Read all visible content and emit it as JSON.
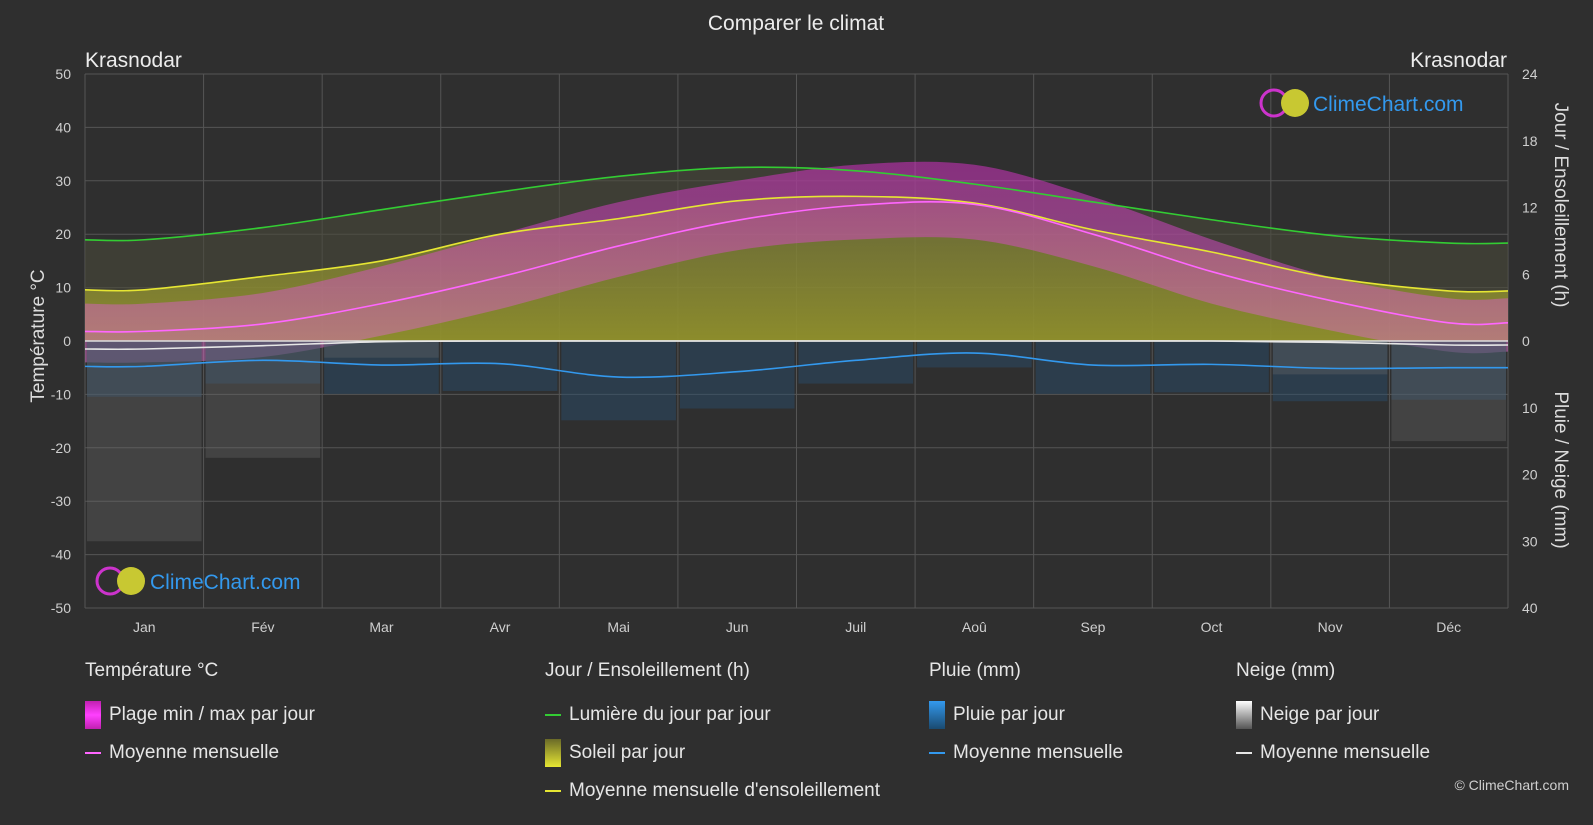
{
  "chart_data": {
    "type": "line",
    "title": "Comparer le climat",
    "location_left": "Krasnodar",
    "location_right": "Krasnodar",
    "watermark": "ClimeChart.com",
    "copyright": "© ClimeChart.com",
    "categories": [
      "Jan",
      "Fév",
      "Mar",
      "Avr",
      "Mai",
      "Jun",
      "Juil",
      "Aoû",
      "Sep",
      "Oct",
      "Nov",
      "Déc"
    ],
    "y_left": {
      "label": "Température °C",
      "range": [
        -50,
        50
      ],
      "ticks": [
        50,
        40,
        30,
        20,
        10,
        0,
        -10,
        -20,
        -30,
        -40,
        -50
      ]
    },
    "y_right_top": {
      "label": "Jour / Ensoleillement (h)",
      "range": [
        0,
        24
      ],
      "ticks": [
        24,
        18,
        12,
        6,
        0
      ]
    },
    "y_right_bottom": {
      "label": "Pluie / Neige (mm)",
      "range": [
        0,
        40
      ],
      "ticks": [
        0,
        10,
        20,
        30,
        40
      ]
    },
    "series": [
      {
        "name": "Lumière du jour par jour",
        "color": "#33cc33",
        "axis": "hours",
        "values": [
          9.1,
          10.2,
          11.8,
          13.4,
          14.8,
          15.6,
          15.3,
          14.1,
          12.5,
          10.9,
          9.5,
          8.8
        ]
      },
      {
        "name": "Moyenne mensuelle d'ensoleillement",
        "color": "#e6e633",
        "axis": "hours",
        "values": [
          4.6,
          5.8,
          7.2,
          9.6,
          11.0,
          12.6,
          13.0,
          12.4,
          10.0,
          8.0,
          5.7,
          4.5
        ]
      },
      {
        "name": "Moyenne mensuelle",
        "group": "Température °C",
        "color": "#ff66ff",
        "axis": "temp",
        "values": [
          1.8,
          3.2,
          7.0,
          12.0,
          17.8,
          22.6,
          25.4,
          25.6,
          20.0,
          13.0,
          7.6,
          3.4
        ]
      },
      {
        "name": "Moyenne mensuelle",
        "group": "Pluie (mm)",
        "color": "#3399ee",
        "axis": "mm",
        "values": [
          3.8,
          2.9,
          3.6,
          3.4,
          5.4,
          4.6,
          2.9,
          1.8,
          3.6,
          3.5,
          4.1,
          4.0
        ]
      },
      {
        "name": "Moyenne mensuelle",
        "group": "Neige (mm)",
        "color": "#e6e6e6",
        "axis": "mm",
        "values": [
          1.2,
          0.7,
          0.1,
          0,
          0,
          0,
          0,
          0,
          0,
          0,
          0.2,
          0.6
        ]
      }
    ],
    "temp_range_band": {
      "min": [
        -4,
        -3,
        1,
        6,
        12,
        17,
        19,
        19,
        14,
        7,
        2,
        -2
      ],
      "max": [
        7,
        9,
        14,
        20,
        26,
        30,
        33,
        33,
        27,
        19,
        12,
        8
      ]
    },
    "grid": true
  },
  "legend": {
    "temp": {
      "title": "Température °C",
      "items": [
        "Plage min / max par jour",
        "Moyenne mensuelle"
      ]
    },
    "sun": {
      "title": "Jour / Ensoleillement (h)",
      "items": [
        "Lumière du jour par jour",
        "Soleil par jour",
        "Moyenne mensuelle d'ensoleillement"
      ]
    },
    "rain": {
      "title": "Pluie (mm)",
      "items": [
        "Pluie par jour",
        "Moyenne mensuelle"
      ]
    },
    "snow": {
      "title": "Neige (mm)",
      "items": [
        "Neige par jour",
        "Moyenne mensuelle"
      ]
    }
  },
  "colors": {
    "background": "#2f2f2f",
    "daylight": "#33cc33",
    "sunshine": "#e6e633",
    "temp": "#ff66ff",
    "rain": "#3399ee",
    "snow": "#e6e6e6"
  }
}
